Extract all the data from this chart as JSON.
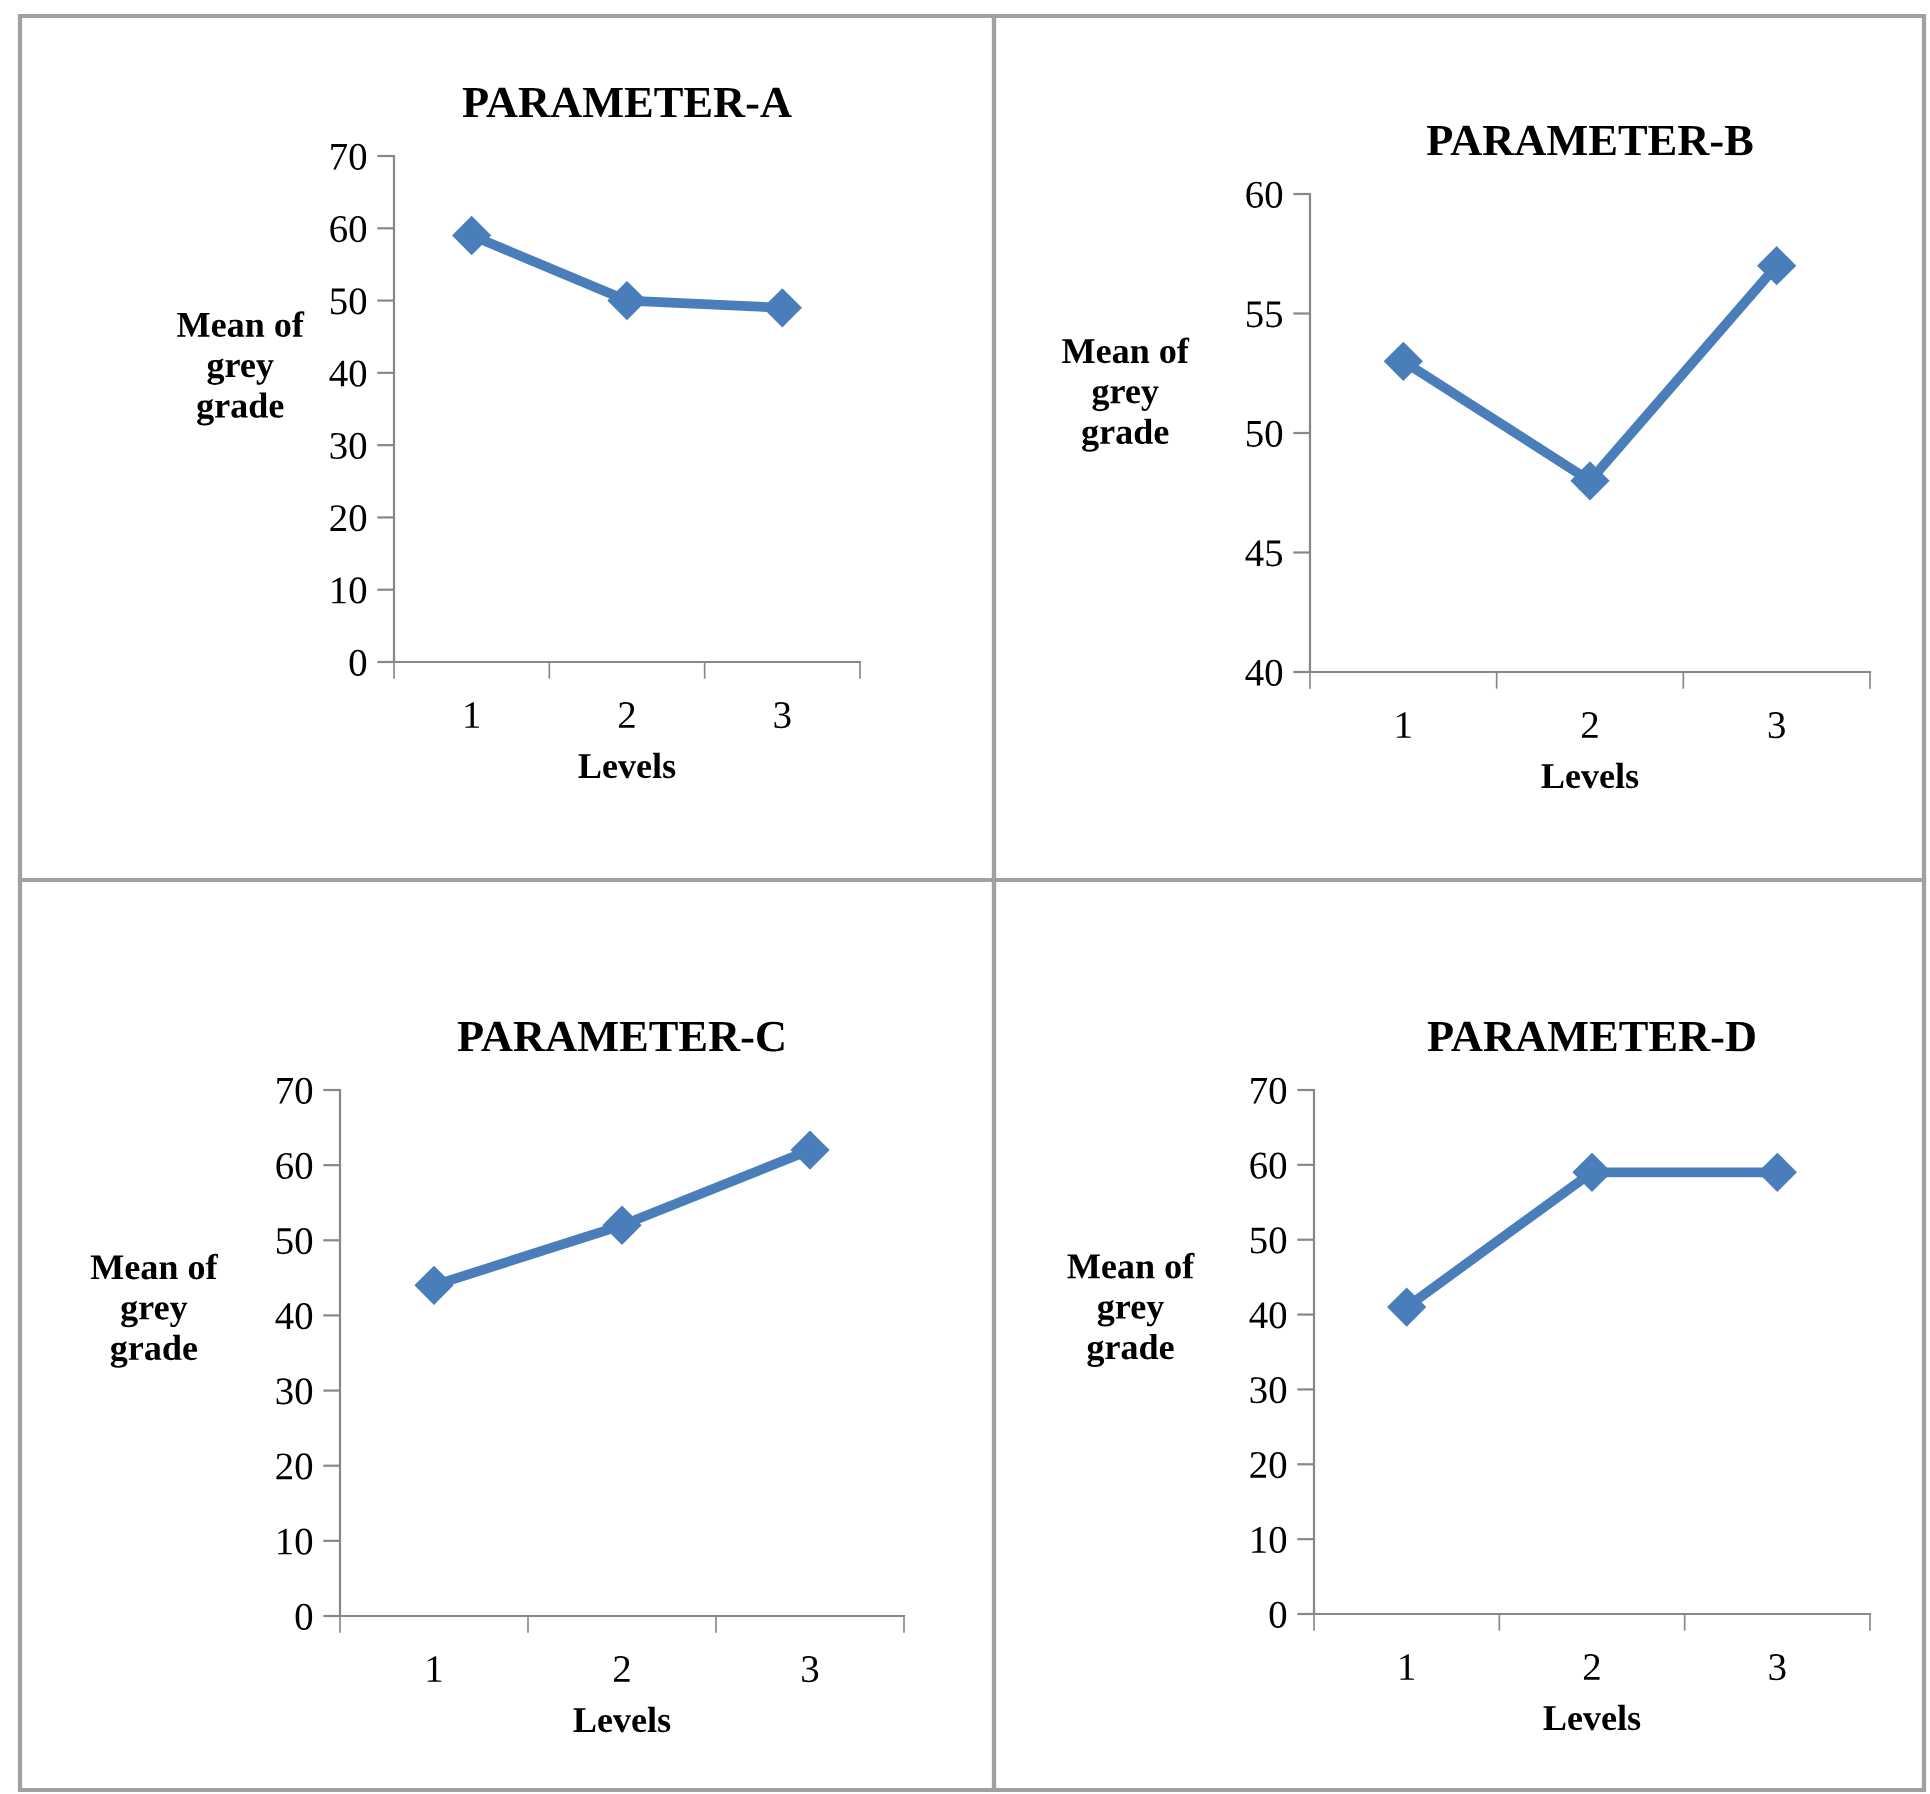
{
  "chart_data": [
    {
      "type": "line",
      "title": "PARAMETER-A",
      "xlabel": "Levels",
      "ylabel": "Mean of\ngrey\ngrade",
      "categories": [
        "1",
        "2",
        "3"
      ],
      "series": [
        {
          "color": "#4a7ebb",
          "values": [
            59,
            50,
            49
          ]
        }
      ],
      "ylim": [
        0,
        70
      ],
      "yticks": [
        0,
        10,
        20,
        30,
        40,
        50,
        60,
        70
      ],
      "marker": "diamond",
      "line_style": "solid",
      "grid": false
    },
    {
      "type": "line",
      "title": "PARAMETER-B",
      "xlabel": "Levels",
      "ylabel": "Mean of\ngrey\ngrade",
      "categories": [
        "1",
        "2",
        "3"
      ],
      "series": [
        {
          "color": "#4a7ebb",
          "values": [
            53,
            48,
            57
          ]
        }
      ],
      "ylim": [
        40,
        60
      ],
      "yticks": [
        40,
        45,
        50,
        55,
        60
      ],
      "marker": "diamond",
      "line_style": "solid",
      "grid": false
    },
    {
      "type": "line",
      "title": "PARAMETER-C",
      "xlabel": "Levels",
      "ylabel": "Mean of\ngrey\ngrade",
      "categories": [
        "1",
        "2",
        "3"
      ],
      "series": [
        {
          "color": "#4a7ebb",
          "values": [
            44,
            52,
            62
          ]
        }
      ],
      "ylim": [
        0,
        70
      ],
      "yticks": [
        0,
        10,
        20,
        30,
        40,
        50,
        60,
        70
      ],
      "marker": "diamond",
      "line_style": "solid",
      "grid": false
    },
    {
      "type": "line",
      "title": "PARAMETER-D",
      "xlabel": "Levels",
      "ylabel": "Mean of\ngrey\ngrade",
      "categories": [
        "1",
        "2",
        "3"
      ],
      "series": [
        {
          "color": "#4a7ebb",
          "values": [
            41,
            59,
            59
          ]
        }
      ],
      "ylim": [
        0,
        70
      ],
      "yticks": [
        0,
        10,
        20,
        30,
        40,
        50,
        60,
        70
      ],
      "marker": "diamond",
      "line_style": "solid",
      "grid": false
    }
  ]
}
